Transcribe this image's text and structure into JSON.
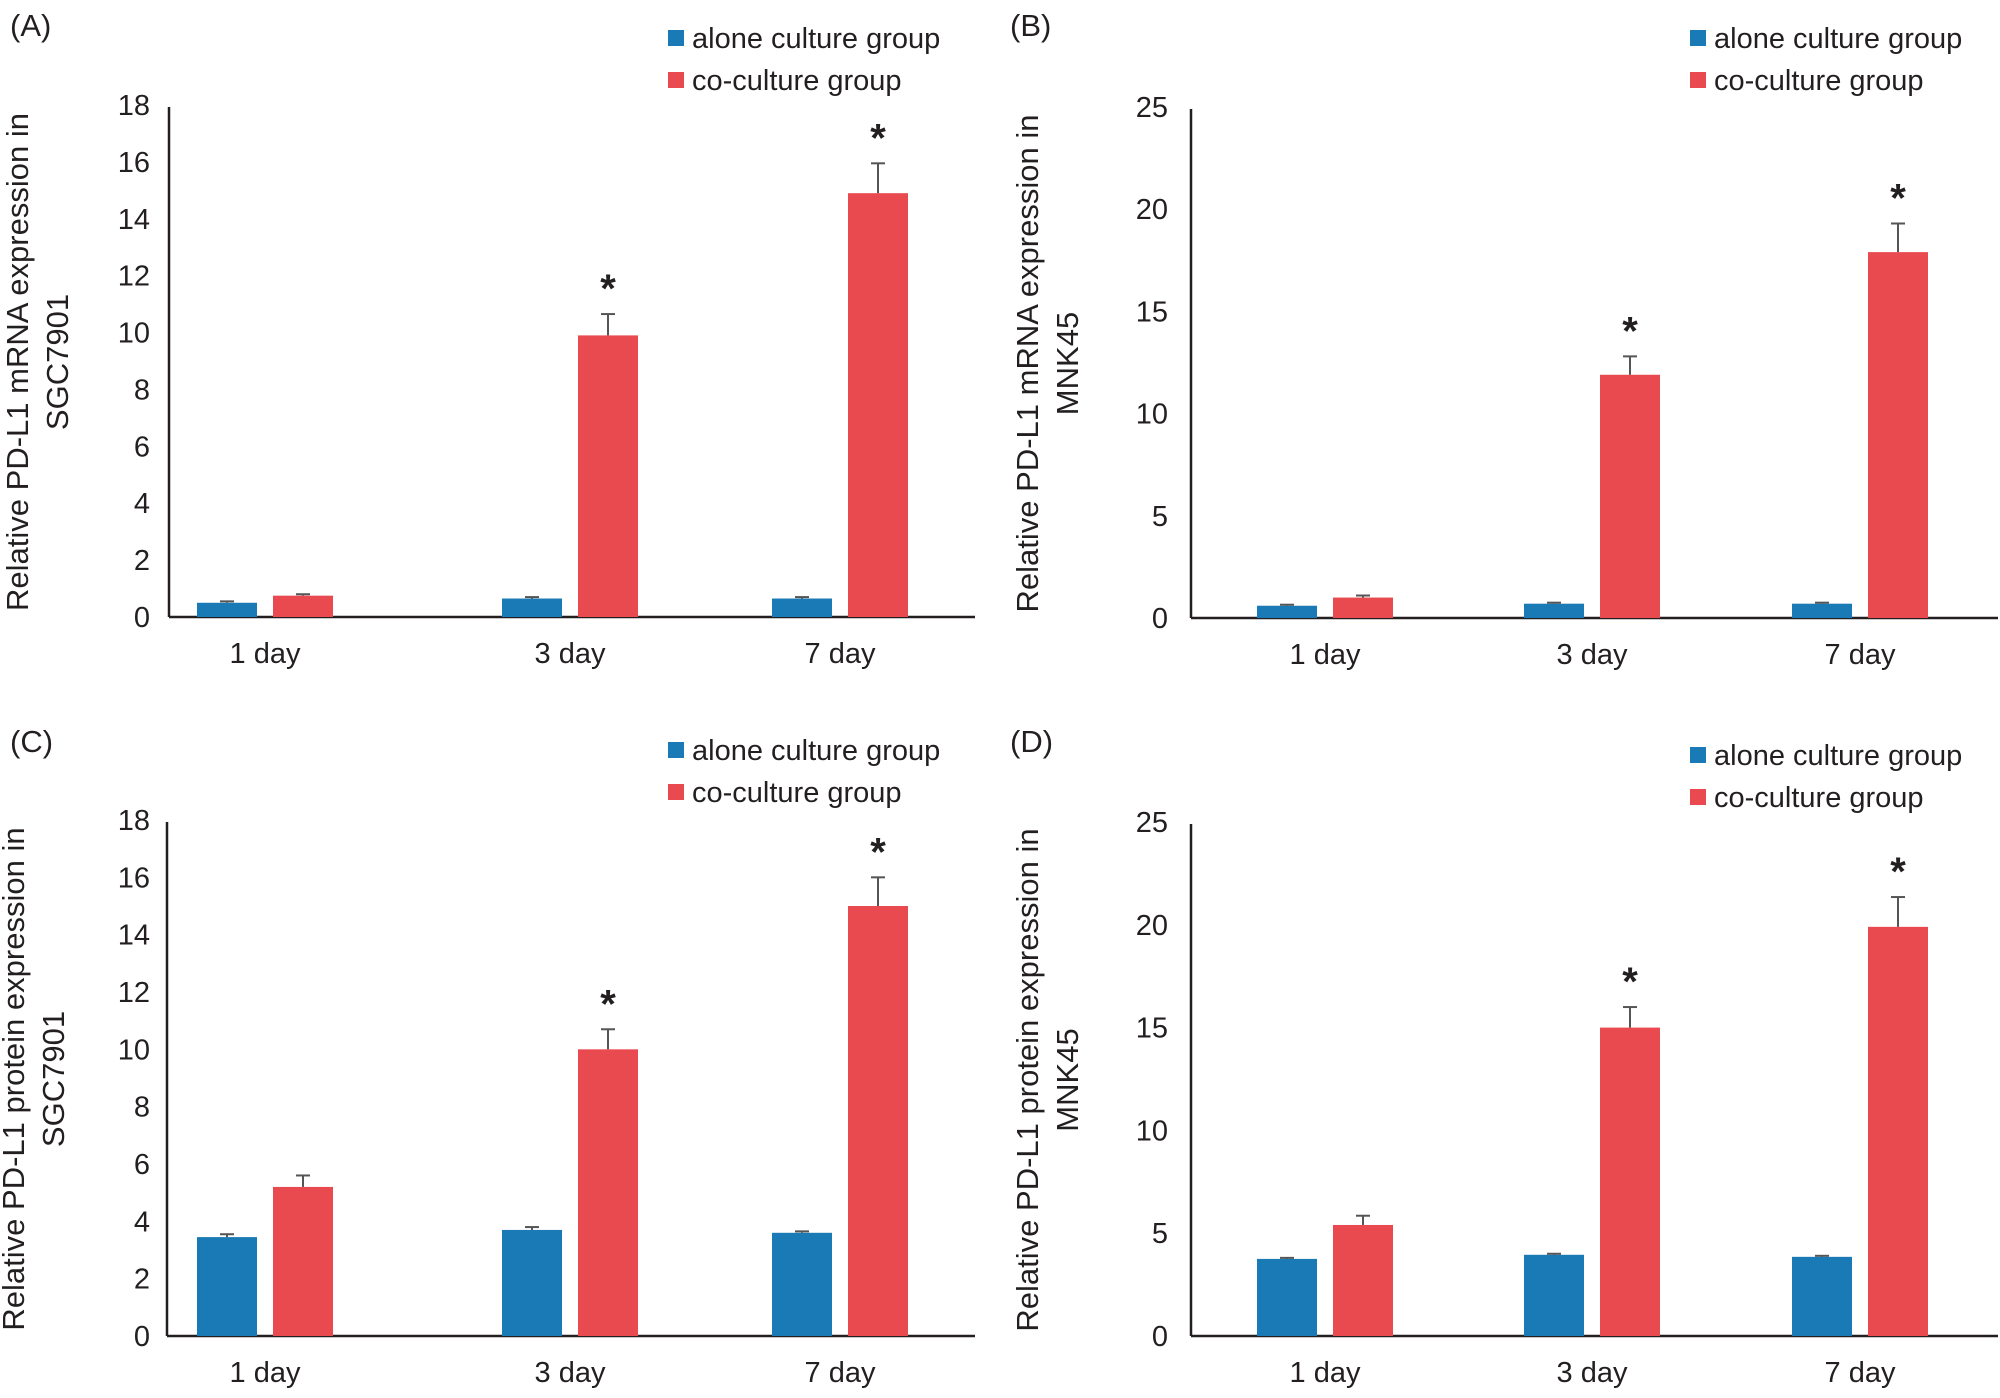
{
  "figure": {
    "legend_entries": [
      "alone culture group",
      "co-culture group"
    ],
    "colors": {
      "alone": "#1a7ab5",
      "co": "#e84a4f",
      "axis": "#231f20",
      "error": "#555555"
    }
  },
  "chart_data": [
    {
      "panel": "(A)",
      "type": "bar",
      "title": "",
      "xlabel": "",
      "ylabel_lines": [
        "Relative PD-L1 mRNA expression in",
        "SGC7901"
      ],
      "categories": [
        "1 day",
        "3 day",
        "7 day"
      ],
      "ylim": [
        0,
        18
      ],
      "yticks": [
        0,
        2,
        4,
        6,
        8,
        10,
        12,
        14,
        16,
        18
      ],
      "legend": "top-right",
      "grid": false,
      "series": [
        {
          "name": "alone culture group",
          "values": [
            0.5,
            0.65,
            0.65
          ],
          "errors": [
            0.05,
            0.05,
            0.05
          ]
        },
        {
          "name": "co-culture group",
          "values": [
            0.75,
            9.9,
            14.9
          ],
          "errors": [
            0.05,
            0.75,
            1.05
          ]
        }
      ],
      "significance": [
        {
          "category": "3 day",
          "series": "co-culture group",
          "mark": "*"
        },
        {
          "category": "7 day",
          "series": "co-culture group",
          "mark": "*"
        }
      ]
    },
    {
      "panel": "(B)",
      "type": "bar",
      "title": "",
      "xlabel": "",
      "ylabel_lines": [
        "Relative PD-L1 mRNA expression in",
        "MNK45"
      ],
      "categories": [
        "1 day",
        "3 day",
        "7 day"
      ],
      "ylim": [
        0,
        25
      ],
      "yticks": [
        0,
        5,
        10,
        15,
        20,
        25
      ],
      "legend": "top-right",
      "grid": false,
      "series": [
        {
          "name": "alone culture group",
          "values": [
            0.6,
            0.7,
            0.7
          ],
          "errors": [
            0.05,
            0.05,
            0.05
          ]
        },
        {
          "name": "co-culture group",
          "values": [
            1.0,
            11.9,
            17.9
          ],
          "errors": [
            0.1,
            0.9,
            1.4
          ]
        }
      ],
      "significance": [
        {
          "category": "3 day",
          "series": "co-culture group",
          "mark": "*"
        },
        {
          "category": "7 day",
          "series": "co-culture group",
          "mark": "*"
        }
      ]
    },
    {
      "panel": "(C)",
      "type": "bar",
      "title": "",
      "xlabel": "",
      "ylabel_lines": [
        "Relative PD-L1 protein expression in",
        "SGC7901"
      ],
      "categories": [
        "1 day",
        "3 day",
        "7 day"
      ],
      "ylim": [
        0,
        18
      ],
      "yticks": [
        0,
        2,
        4,
        6,
        8,
        10,
        12,
        14,
        16,
        18
      ],
      "legend": "top-right",
      "grid": false,
      "series": [
        {
          "name": "alone culture group",
          "values": [
            3.45,
            3.7,
            3.6
          ],
          "errors": [
            0.1,
            0.1,
            0.05
          ]
        },
        {
          "name": "co-culture group",
          "values": [
            5.2,
            10.0,
            15.0
          ],
          "errors": [
            0.4,
            0.7,
            1.0
          ]
        }
      ],
      "significance": [
        {
          "category": "3 day",
          "series": "co-culture group",
          "mark": "*"
        },
        {
          "category": "7 day",
          "series": "co-culture group",
          "mark": "*"
        }
      ]
    },
    {
      "panel": "(D)",
      "type": "bar",
      "title": "",
      "xlabel": "",
      "ylabel_lines": [
        "Relative PD-L1 protein expression in",
        "MNK45"
      ],
      "categories": [
        "1 day",
        "3 day",
        "7 day"
      ],
      "ylim": [
        0,
        25
      ],
      "yticks": [
        0,
        5,
        10,
        15,
        20,
        25
      ],
      "legend": "top-right",
      "grid": false,
      "series": [
        {
          "name": "alone culture group",
          "values": [
            3.75,
            3.95,
            3.85
          ],
          "errors": [
            0.05,
            0.05,
            0.05
          ]
        },
        {
          "name": "co-culture group",
          "values": [
            5.4,
            15.0,
            19.9
          ],
          "errors": [
            0.45,
            1.0,
            1.45
          ]
        }
      ],
      "significance": [
        {
          "category": "3 day",
          "series": "co-culture group",
          "mark": "*"
        },
        {
          "category": "7 day",
          "series": "co-culture group",
          "mark": "*"
        }
      ]
    }
  ]
}
